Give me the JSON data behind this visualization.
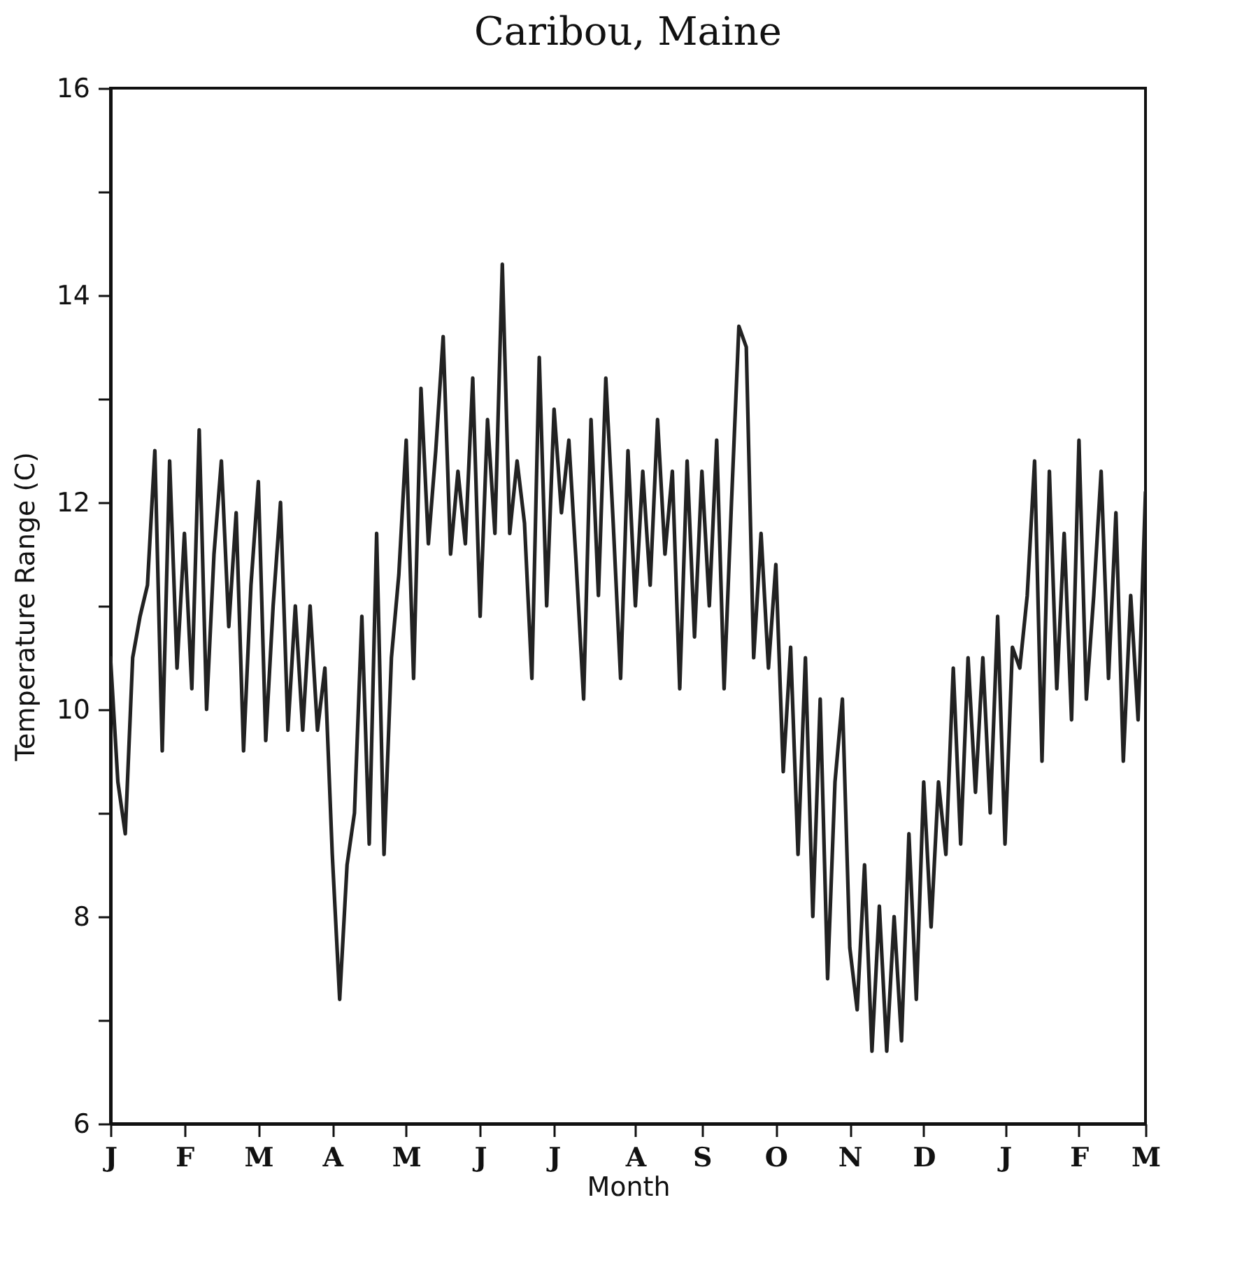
{
  "chart_data": {
    "type": "line",
    "title": "Caribou, Maine",
    "xlabel": "Month",
    "ylabel": "Temperature Range (C)",
    "categories": [
      "J",
      null,
      null,
      null,
      null,
      null,
      null,
      null,
      null,
      null,
      "F",
      null,
      null,
      null,
      null,
      null,
      null,
      null,
      null,
      null,
      "M",
      null,
      null,
      null,
      null,
      null,
      null,
      null,
      null,
      null,
      "A",
      null,
      null,
      null,
      null,
      null,
      null,
      null,
      null,
      null,
      "M",
      null,
      null,
      null,
      null,
      null,
      null,
      null,
      null,
      null,
      "J",
      null,
      null,
      null,
      null,
      null,
      null,
      null,
      null,
      null,
      "J",
      null,
      null,
      null,
      null,
      null,
      null,
      null,
      null,
      null,
      null,
      "A",
      null,
      null,
      null,
      null,
      null,
      null,
      null,
      null,
      "S",
      null,
      null,
      null,
      null,
      null,
      null,
      null,
      null,
      null,
      "O",
      null,
      null,
      null,
      null,
      null,
      null,
      null,
      null,
      null,
      "N",
      null,
      null,
      null,
      null,
      null,
      null,
      null,
      null,
      null,
      "D",
      null,
      null,
      null,
      null,
      null,
      null,
      null,
      null,
      null,
      null,
      "J",
      null,
      null,
      null,
      null,
      null,
      null,
      null,
      null,
      null,
      "F",
      null,
      null,
      null,
      null,
      null,
      null,
      null,
      null,
      "M"
    ],
    "ylim": [
      6,
      16
    ],
    "yticks": [
      6,
      {
        "value": 7,
        "label": null
      },
      8,
      {
        "value": 9,
        "label": null
      },
      10,
      {
        "value": 11,
        "label": null
      },
      12,
      {
        "value": 13,
        "label": null
      },
      14,
      {
        "value": 15,
        "label": null
      },
      16
    ],
    "grid": false,
    "marker": "none",
    "line_style": "solid",
    "series": [
      {
        "color": "#222222",
        "values": [
          10.5,
          9.3,
          8.8,
          10.5,
          10.9,
          11.2,
          12.5,
          9.6,
          12.4,
          10.4,
          11.7,
          10.2,
          12.7,
          10.0,
          11.5,
          12.4,
          10.8,
          11.9,
          9.6,
          11.2,
          12.2,
          9.7,
          11.0,
          12.0,
          9.8,
          11.0,
          9.8,
          11.0,
          9.8,
          10.4,
          8.6,
          7.2,
          8.5,
          9.0,
          10.9,
          8.7,
          11.7,
          8.6,
          10.5,
          11.3,
          12.6,
          10.3,
          13.1,
          11.6,
          12.5,
          13.6,
          11.5,
          12.3,
          11.6,
          13.2,
          10.9,
          12.8,
          11.7,
          14.3,
          11.7,
          12.4,
          11.8,
          10.3,
          13.4,
          11.0,
          12.9,
          11.9,
          12.6,
          11.4,
          10.1,
          12.8,
          11.1,
          13.2,
          11.8,
          10.3,
          12.5,
          11.0,
          12.3,
          11.2,
          12.8,
          11.5,
          12.3,
          10.2,
          12.4,
          10.7,
          12.3,
          11.0,
          12.6,
          10.2,
          12.0,
          13.7,
          13.5,
          10.5,
          11.7,
          10.4,
          11.4,
          9.4,
          10.6,
          8.6,
          10.5,
          8.0,
          10.1,
          7.4,
          9.3,
          10.1,
          7.7,
          7.1,
          8.5,
          6.7,
          8.1,
          6.7,
          8.0,
          6.8,
          8.8,
          7.2,
          9.3,
          7.9,
          9.3,
          8.6,
          10.4,
          8.7,
          10.5,
          9.2,
          10.5,
          9.0,
          10.9,
          8.7,
          10.6,
          10.4,
          11.1,
          12.4,
          9.5,
          12.3,
          10.2,
          11.7,
          9.9,
          12.6,
          10.1,
          11.1,
          12.3,
          10.3,
          11.9,
          9.5,
          11.1,
          9.9,
          12.1
        ]
      }
    ]
  }
}
